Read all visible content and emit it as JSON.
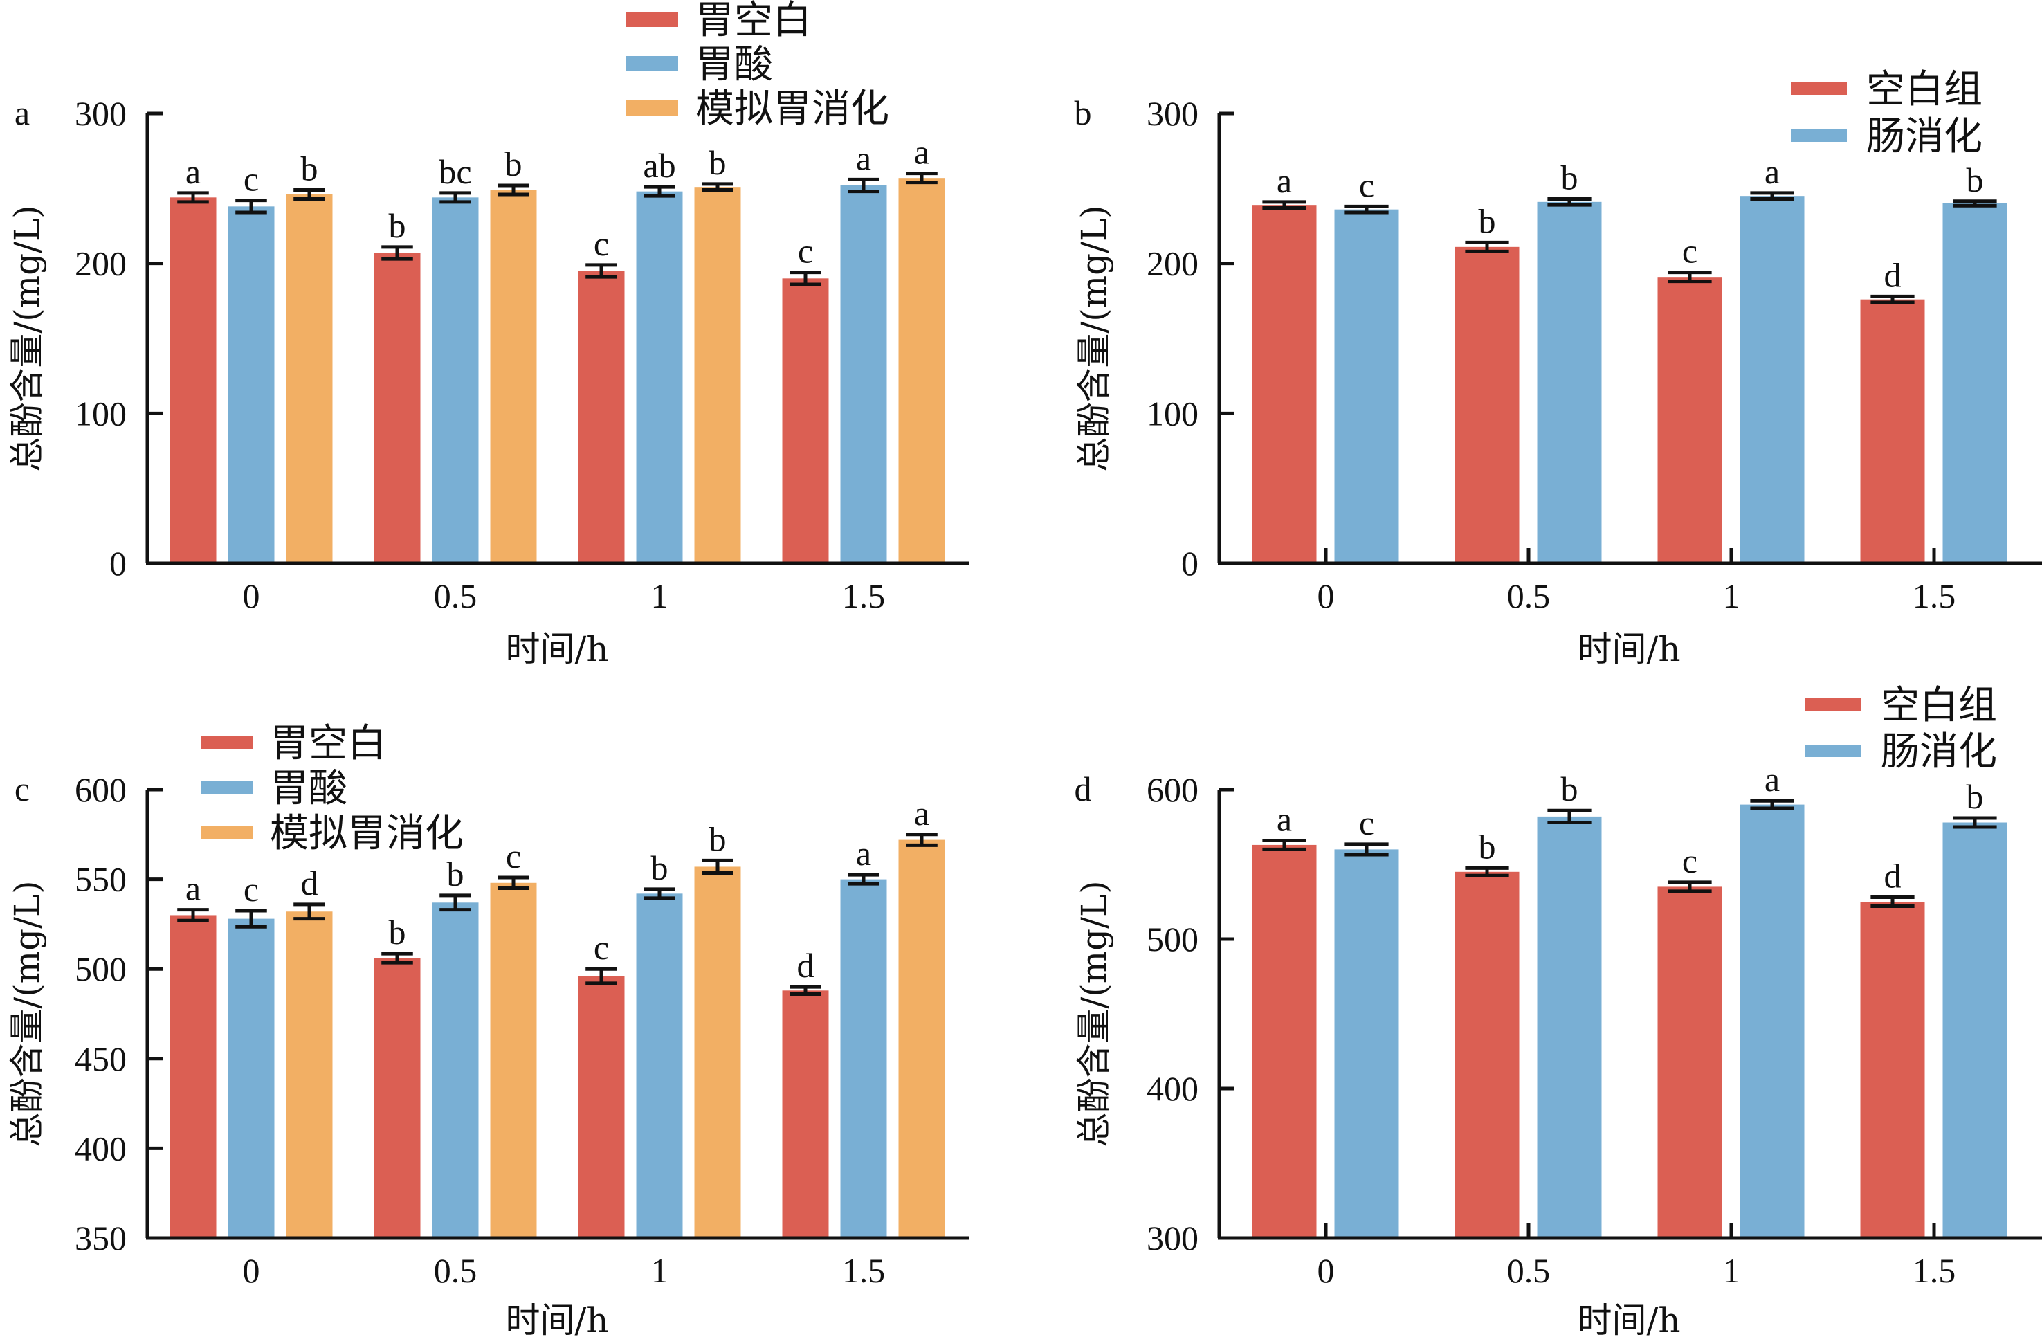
{
  "colors": {
    "red": "#DB5F53",
    "blue": "#79AFD4",
    "orange": "#F2AF64",
    "axis": "#111111"
  },
  "chart_data": [
    {
      "panel": "a",
      "type": "bar",
      "title": "",
      "xlabel": "时间/h",
      "ylabel": "总酚含量/(mg/L)",
      "categories": [
        "0",
        "0.5",
        "1",
        "1.5"
      ],
      "ylim": [
        0,
        300
      ],
      "yticks": [
        "0",
        "100",
        "200",
        "300"
      ],
      "ytick_values": [
        0,
        100,
        200,
        300
      ],
      "legend_position": "top-right",
      "series": [
        {
          "name": "胃空白",
          "color": "#DB5F53",
          "values": [
            244,
            207,
            195,
            190
          ],
          "errors": [
            3,
            4,
            4,
            4
          ],
          "letters": [
            "a",
            "b",
            "c",
            "c"
          ]
        },
        {
          "name": "胃酸",
          "color": "#79AFD4",
          "values": [
            238,
            244,
            248,
            252
          ],
          "errors": [
            4,
            3,
            3,
            4
          ],
          "letters": [
            "c",
            "bc",
            "ab",
            "a"
          ]
        },
        {
          "name": "模拟胃消化",
          "color": "#F2AF64",
          "values": [
            246,
            249,
            251,
            257
          ],
          "errors": [
            3,
            3,
            2,
            3
          ],
          "letters": [
            "b",
            "b",
            "b",
            "a"
          ]
        }
      ]
    },
    {
      "panel": "b",
      "type": "bar",
      "title": "",
      "xlabel": "时间/h",
      "ylabel": "总酚含量/(mg/L)",
      "categories": [
        "0",
        "0.5",
        "1",
        "1.5"
      ],
      "ylim": [
        0,
        300
      ],
      "yticks": [
        "0",
        "100",
        "200",
        "300"
      ],
      "ytick_values": [
        0,
        100,
        200,
        300
      ],
      "legend_position": "top-right",
      "series": [
        {
          "name": "空白组",
          "color": "#DB5F53",
          "values": [
            239,
            211,
            191,
            176
          ],
          "errors": [
            2,
            3,
            3,
            2
          ],
          "letters": [
            "a",
            "b",
            "c",
            "d"
          ]
        },
        {
          "name": "肠消化",
          "color": "#79AFD4",
          "values": [
            236,
            241,
            245,
            240
          ],
          "errors": [
            2,
            2,
            2,
            1.5
          ],
          "letters": [
            "c",
            "b",
            "a",
            "b"
          ]
        }
      ]
    },
    {
      "panel": "c",
      "type": "bar",
      "title": "",
      "xlabel": "时间/h",
      "ylabel": "总酚含量/(mg/L)",
      "categories": [
        "0",
        "0.5",
        "1",
        "1.5"
      ],
      "ylim": [
        350,
        600
      ],
      "yticks": [
        "350",
        "400",
        "450",
        "500",
        "550",
        "600"
      ],
      "ytick_values": [
        350,
        400,
        450,
        500,
        550,
        600
      ],
      "legend_position": "top-left",
      "series": [
        {
          "name": "胃空白",
          "color": "#DB5F53",
          "values": [
            530,
            506,
            496,
            488
          ],
          "errors": [
            3,
            2.5,
            4,
            2
          ],
          "letters": [
            "a",
            "b",
            "c",
            "d"
          ]
        },
        {
          "name": "胃酸",
          "color": "#79AFD4",
          "values": [
            528,
            537,
            542,
            550
          ],
          "errors": [
            4.5,
            4,
            2.5,
            2.5
          ],
          "letters": [
            "c",
            "b",
            "b",
            "a"
          ]
        },
        {
          "name": "模拟胃消化",
          "color": "#F2AF64",
          "values": [
            532,
            548,
            557,
            572
          ],
          "errors": [
            4,
            3,
            3.5,
            3
          ],
          "letters": [
            "d",
            "c",
            "b",
            "a"
          ]
        }
      ]
    },
    {
      "panel": "d",
      "type": "bar",
      "title": "",
      "xlabel": "时间/h",
      "ylabel": "总酚含量/(mg/L)",
      "categories": [
        "0",
        "0.5",
        "1",
        "1.5"
      ],
      "ylim": [
        300,
        600
      ],
      "yticks": [
        "300",
        "400",
        "500",
        "600"
      ],
      "ytick_values": [
        300,
        400,
        500,
        600
      ],
      "legend_position": "top-right",
      "series": [
        {
          "name": "空白组",
          "color": "#DB5F53",
          "values": [
            563,
            545,
            535,
            525
          ],
          "errors": [
            3,
            2.5,
            3,
            3
          ],
          "letters": [
            "a",
            "b",
            "c",
            "d"
          ]
        },
        {
          "name": "肠消化",
          "color": "#79AFD4",
          "values": [
            560,
            582,
            590,
            578
          ],
          "errors": [
            3.5,
            4,
            2.5,
            3
          ],
          "letters": [
            "c",
            "b",
            "a",
            "b"
          ]
        }
      ]
    }
  ]
}
